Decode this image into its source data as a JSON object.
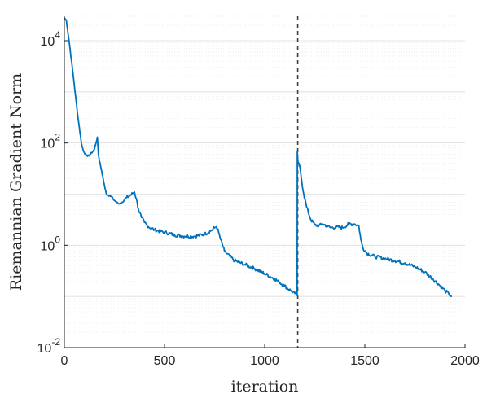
{
  "chart_data": {
    "type": "line",
    "title": "",
    "xlabel": "iteration",
    "ylabel": "Riemannian Gradient Norm",
    "xlim": [
      0,
      2000
    ],
    "ylim": [
      0.01,
      30000
    ],
    "yscale": "log",
    "grid": "on",
    "line_color": "#0072BD",
    "x_ticks": [
      {
        "value": 0,
        "label": "0"
      },
      {
        "value": 500,
        "label": "500"
      },
      {
        "value": 1000,
        "label": "1000"
      },
      {
        "value": 1500,
        "label": "1500"
      },
      {
        "value": 2000,
        "label": "2000"
      }
    ],
    "y_ticks": [
      {
        "value": 0.01,
        "base": "10",
        "exp": "-2"
      },
      {
        "value": 1,
        "base": "10",
        "exp": "0"
      },
      {
        "value": 100,
        "base": "10",
        "exp": "2"
      },
      {
        "value": 10000,
        "base": "10",
        "exp": "4"
      }
    ],
    "vertical_line": {
      "x": 1165,
      "style": "dashed"
    },
    "series": [
      {
        "x": [
          0,
          10,
          25,
          45,
          65,
          85,
          95,
          105,
          115,
          130,
          150,
          165,
          170,
          175,
          185,
          200,
          210,
          220,
          235,
          250,
          270,
          290,
          310,
          330,
          350,
          360,
          370,
          385,
          400,
          420,
          450,
          500,
          550,
          600,
          650,
          700,
          730,
          750,
          760,
          770,
          780,
          800,
          850,
          900,
          950,
          1000,
          1050,
          1100,
          1130,
          1150,
          1162,
          1163,
          1164,
          1168,
          1175,
          1185,
          1195,
          1210,
          1230,
          1250,
          1270,
          1290,
          1310,
          1330,
          1360,
          1390,
          1420,
          1450,
          1470,
          1480,
          1490,
          1510,
          1550,
          1600,
          1650,
          1700,
          1750,
          1800,
          1840,
          1870,
          1900,
          1920,
          1935
        ],
        "y": [
          28000,
          25000,
          9000,
          2000,
          400,
          100,
          70,
          60,
          55,
          60,
          75,
          130,
          60,
          45,
          30,
          15,
          10,
          9.5,
          9,
          7.5,
          6.5,
          7,
          8.5,
          9.5,
          11,
          8,
          5,
          3.5,
          2.8,
          2.3,
          2.0,
          1.8,
          1.6,
          1.5,
          1.5,
          1.65,
          1.9,
          2.2,
          2.3,
          1.8,
          1.3,
          0.75,
          0.5,
          0.42,
          0.35,
          0.28,
          0.22,
          0.16,
          0.13,
          0.115,
          0.105,
          70,
          50,
          40,
          35,
          18,
          10,
          5.5,
          3.2,
          2.5,
          2.4,
          2.6,
          2.4,
          2.2,
          2.3,
          2.2,
          2.6,
          2.6,
          2.4,
          1.3,
          0.9,
          0.7,
          0.6,
          0.55,
          0.5,
          0.45,
          0.38,
          0.3,
          0.22,
          0.17,
          0.13,
          0.11,
          0.1
        ]
      }
    ]
  }
}
